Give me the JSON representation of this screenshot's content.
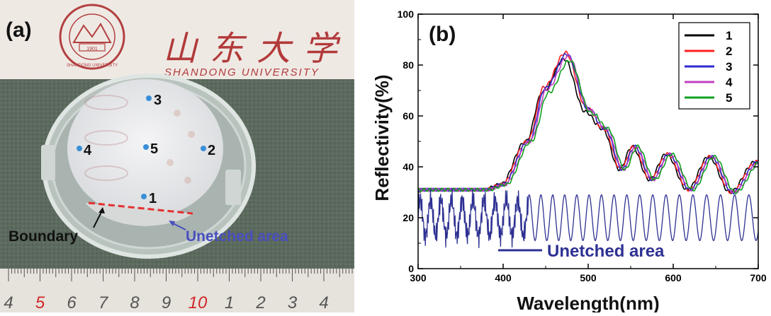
{
  "panel_a": {
    "label": "(a)",
    "university_name": "SHANDONG UNIVERSITY",
    "chinese_name": "山东大学",
    "seal_year": "1901",
    "seal_text": "SHANDONG UNIVERSITY",
    "points": [
      "1",
      "2",
      "3",
      "4",
      "5"
    ],
    "boundary_label": "Boundary",
    "unetched_label": "Unetched area",
    "ruler_numbers": [
      "4",
      "5",
      "6",
      "7",
      "8",
      "9",
      "10",
      "1",
      "2",
      "3",
      "4"
    ],
    "colors": {
      "point": "#3a8fd8",
      "boundary_line": "#e53030",
      "unetched_text": "#4a4fc0"
    }
  },
  "chart_data": {
    "type": "line",
    "panel_label": "(b)",
    "title": "",
    "xlabel": "Wavelength(nm)",
    "ylabel": "Reflectivity(%)",
    "xlim": [
      300,
      700
    ],
    "ylim": [
      0,
      100
    ],
    "xticks": [
      300,
      400,
      500,
      600,
      700
    ],
    "yticks": [
      0,
      20,
      40,
      60,
      80,
      100
    ],
    "legend_position": "top-right",
    "series": [
      {
        "name": "1",
        "color": "#000000",
        "peak": 82
      },
      {
        "name": "2",
        "color": "#ff2020",
        "peak": 86
      },
      {
        "name": "3",
        "color": "#2b2bd0",
        "peak": 85
      },
      {
        "name": "4",
        "color": "#c040c0",
        "peak": 84
      },
      {
        "name": "5",
        "color": "#10a020",
        "peak": 81
      }
    ],
    "key_points": {
      "x": [
        300,
        380,
        400,
        430,
        450,
        475,
        500,
        520,
        540,
        555,
        575,
        595,
        620,
        645,
        670,
        700
      ],
      "y": [
        31,
        31,
        33,
        50,
        70,
        83,
        62,
        55,
        39,
        48,
        35,
        45,
        31,
        44,
        30,
        42
      ]
    },
    "unetched": {
      "name": "Unetched area",
      "color": "#2e3192",
      "mean": 20,
      "amplitude": 9,
      "period_start": 12,
      "period_end": 17
    },
    "annotation": "Unetched area"
  }
}
